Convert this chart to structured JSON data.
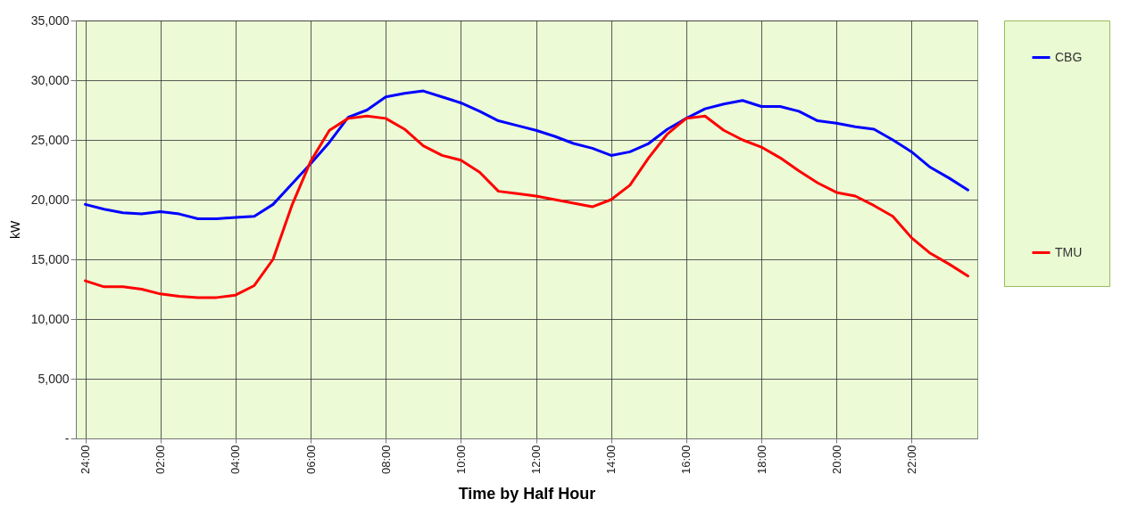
{
  "chart_data": {
    "type": "line",
    "xlabel": "Time by Half Hour",
    "ylabel": "kW",
    "categories": [
      "24:00",
      null,
      null,
      null,
      "02:00",
      null,
      null,
      null,
      "04:00",
      null,
      null,
      null,
      "06:00",
      null,
      null,
      null,
      "08:00",
      null,
      null,
      null,
      "10:00",
      null,
      null,
      null,
      "12:00",
      null,
      null,
      null,
      "14:00",
      null,
      null,
      null,
      "16:00",
      null,
      null,
      null,
      "18:00",
      null,
      null,
      null,
      "20:00",
      null,
      null,
      null,
      "22:00",
      null,
      null,
      null
    ],
    "series": [
      {
        "name": "CBG",
        "color": "#0000ff",
        "values": [
          19600,
          19200,
          18900,
          18800,
          19000,
          18800,
          18400,
          18400,
          18500,
          18600,
          19600,
          21300,
          23000,
          24800,
          26900,
          27500,
          28600,
          28900,
          29100,
          28600,
          28100,
          27400,
          26600,
          26200,
          25800,
          25300,
          24700,
          24300,
          23700,
          24000,
          24700,
          25900,
          26800,
          27600,
          28000,
          28300,
          27800,
          27800,
          27400,
          26600,
          26400,
          26100,
          25900,
          25000,
          24000,
          22700,
          21800,
          20800
        ]
      },
      {
        "name": "TMU",
        "color": "#ff0000",
        "values": [
          13200,
          12700,
          12700,
          12500,
          12100,
          11900,
          11800,
          11800,
          12000,
          12800,
          15000,
          19500,
          23200,
          25800,
          26800,
          27000,
          26800,
          25900,
          24500,
          23700,
          23300,
          22300,
          20700,
          20500,
          20300,
          20000,
          19700,
          19400,
          20000,
          21200,
          23500,
          25500,
          26800,
          27000,
          25800,
          25000,
          24400,
          23500,
          22400,
          21400,
          20600,
          20300,
          19500,
          18600,
          16800,
          15500,
          14600,
          13600
        ]
      }
    ],
    "ylim": [
      0,
      35000
    ],
    "yticks": [
      {
        "value": 0,
        "label": "-"
      },
      {
        "value": 5000,
        "label": "5,000"
      },
      {
        "value": 10000,
        "label": "10,000"
      },
      {
        "value": 15000,
        "label": "15,000"
      },
      {
        "value": 20000,
        "label": "20,000"
      },
      {
        "value": 25000,
        "label": "25,000"
      },
      {
        "value": 30000,
        "label": "30,000"
      },
      {
        "value": 35000,
        "label": "35,000"
      }
    ],
    "grid": true,
    "legend": "right"
  }
}
